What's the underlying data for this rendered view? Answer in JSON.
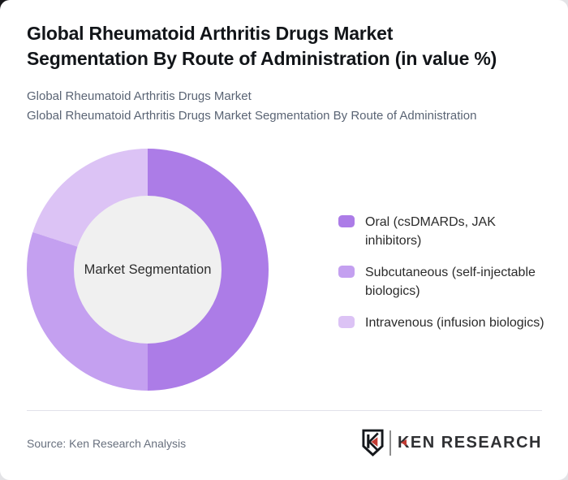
{
  "header": {
    "title": "Global Rheumatoid Arthritis Drugs Market Segmentation By Route of Administration (in value %)",
    "title_lines": [
      "Global Rheumatoid Arthritis Drugs Market",
      "Segmentation By Route of Administration (in value %)"
    ],
    "subtitle_lines": [
      "Global Rheumatoid Arthritis Drugs Market",
      "Global Rheumatoid Arthritis Drugs Market Segmentation By Route of Administration"
    ]
  },
  "chart_data": {
    "type": "pie",
    "donut": true,
    "title": "Global Rheumatoid Arthritis Drugs Market Segmentation By Route of Administration (in value %)",
    "center_label": "Market Segmentation",
    "categories": [
      "Oral (csDMARDs, JAK inhibitors)",
      "Subcutaneous (self-injectable biologics)",
      "Intravenous (infusion biologics)"
    ],
    "values": [
      50,
      30,
      20
    ],
    "unit": "percent of market value",
    "colors": [
      "#ac7ce7",
      "#c4a0f0",
      "#dcc3f5"
    ],
    "start_angle_deg": 0,
    "inner_radius_ratio": 0.61,
    "hole_color": "#f0f0f0",
    "legend_position": "right",
    "data_labels": false
  },
  "legend": {
    "items": [
      {
        "label": "Oral (csDMARDs, JAK inhibitors)",
        "lines": [
          "Oral (csDMARDs, JAK",
          "inhibitors)"
        ],
        "color": "#ac7ce7"
      },
      {
        "label": "Subcutaneous (self-injectable biologics)",
        "lines": [
          "Subcutaneous (self-injectable",
          "biologics)"
        ],
        "color": "#c4a0f0"
      },
      {
        "label": "Intravenous (infusion biologics)",
        "lines": [
          "Intravenous (infusion biologics)"
        ],
        "color": "#dcc3f5"
      }
    ]
  },
  "footer": {
    "source": "Source: Ken Research Analysis",
    "brand": "KEN RESEARCH"
  }
}
